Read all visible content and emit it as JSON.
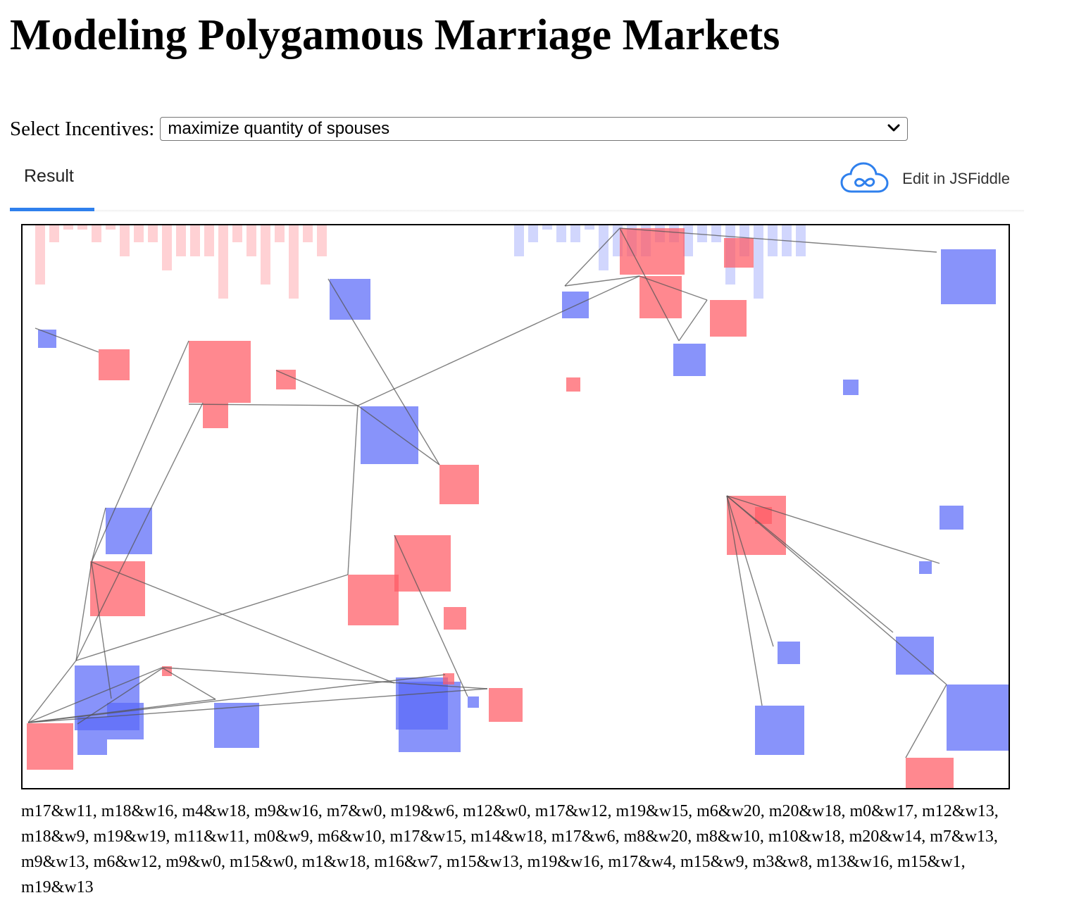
{
  "page": {
    "title": "Modeling Polygamous Marriage Markets"
  },
  "controls": {
    "select_label": "Select Incentives:",
    "selected_option": "maximize quantity of spouses"
  },
  "tabs": {
    "result_label": "Result",
    "edit_label": "Edit in JSFiddle"
  },
  "colors": {
    "women": "#ff5a64",
    "men": "#5a6af8",
    "tab_accent": "#2f80ed"
  },
  "simulation": {
    "pairs_text": "m17&w11, m18&w16, m4&w18, m9&w16, m7&w0, m19&w6, m12&w0, m17&w12, m19&w15, m6&w20, m20&w18, m0&w17, m12&w13, m18&w9, m19&w19, m11&w11, m0&w9, m6&w10, m17&w15, m14&w18, m17&w6, m8&w20, m8&w10, m10&w18, m20&w14, m7&w13, m9&w13, m6&w12, m9&w0, m15&w0, m1&w18, m16&w7, m15&w13, m19&w16, m17&w4, m15&w9, m3&w8, m13&w16, m15&w1, m19&w13"
  }
}
